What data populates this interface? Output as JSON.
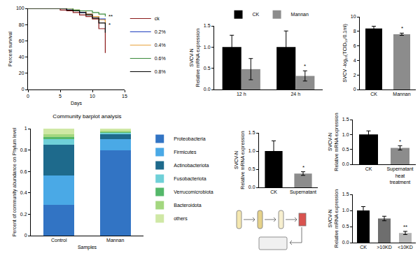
{
  "chart_data": [
    {
      "type": "line",
      "line_style": "step",
      "x": [
        0,
        1,
        2,
        3,
        4,
        5,
        6,
        7,
        8,
        9,
        10,
        11,
        12
      ],
      "series": [
        {
          "name": "ck",
          "color": "#8b1a1a",
          "values": [
            100,
            100,
            100,
            100,
            100,
            98,
            97,
            95,
            92,
            90,
            87,
            75,
            45
          ]
        },
        {
          "name": "0.2%",
          "color": "#1f3fbf",
          "values": [
            100,
            100,
            100,
            100,
            100,
            100,
            98,
            97,
            95,
            93,
            90,
            87,
            84
          ]
        },
        {
          "name": "0.4%",
          "color": "#e8a33d",
          "values": [
            100,
            100,
            100,
            100,
            100,
            100,
            100,
            98,
            97,
            93,
            90,
            86,
            80
          ]
        },
        {
          "name": "0.6%",
          "color": "#3a8a3a",
          "values": [
            100,
            100,
            100,
            100,
            100,
            100,
            100,
            98,
            97,
            97,
            95,
            93,
            90
          ]
        },
        {
          "name": "0.8%",
          "color": "#000000",
          "values": [
            100,
            100,
            100,
            100,
            100,
            100,
            98,
            97,
            95,
            92,
            88,
            82,
            70
          ]
        }
      ],
      "x_label": "Days",
      "y_label": "Percent survival",
      "xlim": [
        0,
        15
      ],
      "xticks": [
        0,
        5,
        10,
        15
      ],
      "ylim": [
        0,
        100
      ],
      "yticks": [
        0,
        20,
        40,
        60,
        80,
        100
      ],
      "legend": "right",
      "annotations": [
        {
          "series": "0.6%",
          "text": "**"
        },
        {
          "series": "0.4%",
          "text": "*"
        }
      ]
    },
    {
      "type": "bar",
      "categories": [
        "12 h",
        "24 h"
      ],
      "series": [
        {
          "name": "CK",
          "color": "#000000",
          "values": [
            1.0,
            1.0
          ],
          "errors": [
            0.28,
            0.38
          ]
        },
        {
          "name": "Mannan",
          "color": "#8c8c8c",
          "values": [
            0.48,
            0.32
          ],
          "errors": [
            0.25,
            0.12
          ]
        }
      ],
      "y_label": [
        "SVCV-N",
        "Relative mRNA expression"
      ],
      "ylim": [
        0,
        1.5
      ],
      "yticks": [
        {
          "value": 0,
          "label": "0.0"
        },
        0.5,
        {
          "value": 1,
          "label": "1.0"
        },
        1.5
      ],
      "legend": "top",
      "annotations": [
        {
          "category": "24 h",
          "series": "Mannan",
          "text": "*"
        }
      ]
    },
    {
      "type": "bar",
      "categories": [
        "CK",
        "Mannan"
      ],
      "values": [
        8.4,
        7.6
      ],
      "errors": [
        0.3,
        0.15
      ],
      "colors": [
        "#000000",
        "#8c8c8c"
      ],
      "y_label": "SVCV -log₁₀(TCID₅₀/0.1ml)",
      "ylim": [
        0,
        10
      ],
      "yticks": [
        0,
        2,
        4,
        6,
        8,
        10
      ],
      "annotations": [
        {
          "category": "Mannan",
          "text": "*"
        }
      ]
    },
    {
      "type": "bar",
      "stacked": true,
      "title": "Community barplot analysis",
      "categories": [
        "Control",
        "Mannan"
      ],
      "series": [
        {
          "name": "Proteobacteria",
          "color": "#3274c4",
          "values": [
            0.29,
            0.8
          ]
        },
        {
          "name": "Firmicutes",
          "color": "#4aa9e6",
          "values": [
            0.27,
            0.1
          ]
        },
        {
          "name": "Actinobacteriota",
          "color": "#1e6a8c",
          "values": [
            0.29,
            0.05
          ]
        },
        {
          "name": "Fusobacteriota",
          "color": "#6fd0d8",
          "values": [
            0.05,
            0.01
          ]
        },
        {
          "name": "Verrucomicrobiota",
          "color": "#55b86a",
          "values": [
            0.02,
            0.01
          ]
        },
        {
          "name": "Bacteroidota",
          "color": "#a3d77f",
          "values": [
            0.03,
            0.01
          ]
        },
        {
          "name": "others",
          "color": "#cfe8a5",
          "values": [
            0.05,
            0.02
          ]
        }
      ],
      "x_label": "Samples",
      "y_label": "Percent of community abundance on Phylum level",
      "ylim": [
        0,
        1
      ],
      "yticks": [
        0,
        0.2,
        0.4,
        0.6,
        0.8,
        1
      ],
      "legend": "right"
    },
    {
      "type": "bar",
      "categories": [
        "CK",
        "Supernatant"
      ],
      "values": [
        1.0,
        0.38
      ],
      "errors": [
        0.28,
        0.05
      ],
      "colors": [
        "#000000",
        "#8c8c8c"
      ],
      "y_label": [
        "SVCV-N",
        "Relative mRNA expression"
      ],
      "ylim": [
        0,
        1.5
      ],
      "yticks": [
        {
          "value": 0,
          "label": "0.0"
        },
        0.5,
        {
          "value": 1,
          "label": "1.0"
        },
        1.5
      ],
      "annotations": [
        {
          "category": "Supernatant",
          "text": "*"
        }
      ]
    },
    {
      "type": "bar",
      "categories": [
        "CK",
        "Supernatant heat treatment"
      ],
      "values": [
        1.0,
        0.55
      ],
      "errors": [
        0.12,
        0.07
      ],
      "colors": [
        "#000000",
        "#8c8c8c"
      ],
      "y_label": [
        "SVCV-N",
        "Relative mRNA expression"
      ],
      "ylim": [
        0,
        1.5
      ],
      "yticks": [
        {
          "value": 0,
          "label": "0.0"
        },
        0.5,
        {
          "value": 1,
          "label": "1.0"
        },
        1.5
      ],
      "annotations": [
        {
          "category": "Supernatant heat treatment",
          "text": "*"
        }
      ]
    },
    {
      "type": "bar",
      "categories": [
        "CK",
        ">10KD",
        "<10KD"
      ],
      "values": [
        1.0,
        0.75,
        0.3
      ],
      "errors": [
        0.12,
        0.07,
        0.05
      ],
      "colors": [
        "#000000",
        "#6e6e6e",
        "#b4b4b4"
      ],
      "y_label": [
        "SVCV-N",
        "Relative mRNA expression"
      ],
      "ylim": [
        0,
        1.5
      ],
      "yticks": [
        {
          "value": 0,
          "label": "0.0"
        },
        0.5,
        {
          "value": 1,
          "label": "1.0"
        },
        1.5
      ],
      "annotations": [
        {
          "category": "<10KD",
          "text": "**"
        }
      ]
    }
  ]
}
